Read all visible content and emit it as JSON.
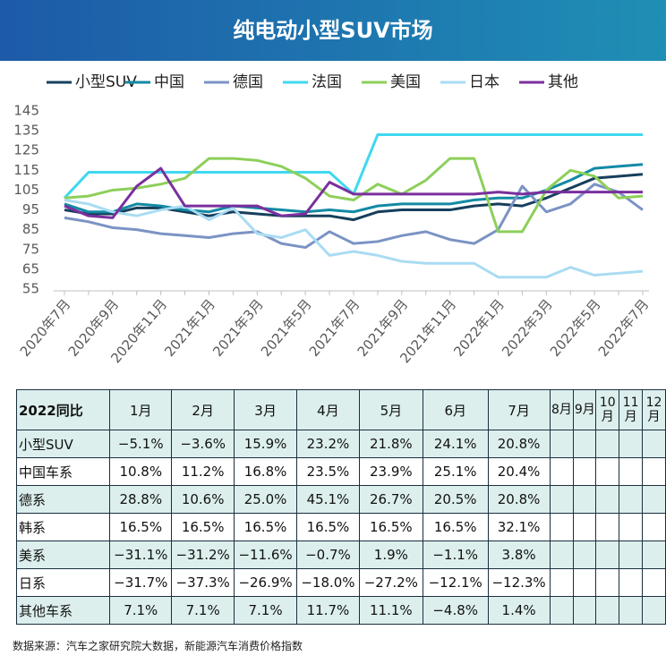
{
  "header": {
    "title": "纯电动小型SUV市场"
  },
  "chart_data": {
    "type": "line",
    "categories": [
      "2020年7月",
      null,
      "2020年9月",
      null,
      "2020年11月",
      null,
      "2021年1月",
      null,
      "2021年3月",
      null,
      "2021年5月",
      null,
      "2021年7月",
      null,
      "2021年9月",
      null,
      "2021年11月",
      null,
      "2022年1月",
      null,
      "2022年3月",
      null,
      "2022年5月",
      null,
      "2022年7月"
    ],
    "ylim": [
      55,
      145
    ],
    "yticks": [
      55,
      65,
      75,
      85,
      95,
      105,
      115,
      125,
      135,
      145
    ],
    "grid": false,
    "legend": "top",
    "series": [
      {
        "name": "小型SUV",
        "color": "#163f5c",
        "values": [
          95,
          93,
          93,
          96,
          96,
          94,
          92,
          94,
          93,
          92,
          92,
          92,
          90,
          94,
          95,
          95,
          95,
          97,
          98,
          97,
          101,
          106,
          111,
          112,
          113
        ]
      },
      {
        "name": "中国",
        "color": "#138aa5",
        "values": [
          98,
          94,
          94,
          98,
          97,
          95,
          94,
          97,
          96,
          95,
          94,
          95,
          94,
          97,
          98,
          98,
          98,
          100,
          101,
          101,
          105,
          110,
          116,
          117,
          118
        ]
      },
      {
        "name": "德国",
        "color": "#7b93c4",
        "values": [
          91,
          89,
          86,
          85,
          83,
          82,
          81,
          83,
          84,
          78,
          76,
          84,
          78,
          79,
          82,
          84,
          80,
          78,
          85,
          107,
          94,
          98,
          108,
          104,
          95
        ]
      },
      {
        "name": "法国",
        "color": "#3fd8f0",
        "values": [
          101,
          114,
          114,
          114,
          114,
          114,
          114,
          114,
          114,
          114,
          114,
          114,
          103,
          133,
          133,
          133,
          133,
          133,
          133,
          133,
          133,
          133,
          133,
          133,
          133
        ]
      },
      {
        "name": "美国",
        "color": "#8dcf5a",
        "values": [
          101,
          102,
          105,
          106,
          108,
          111,
          121,
          121,
          120,
          117,
          111,
          102,
          100,
          108,
          103,
          110,
          121,
          121,
          84,
          84,
          105,
          115,
          112,
          101,
          102
        ]
      },
      {
        "name": "日本",
        "color": "#a9dcf2",
        "values": [
          100,
          98,
          94,
          92,
          95,
          97,
          90,
          96,
          83,
          81,
          85,
          72,
          74,
          72,
          69,
          68,
          68,
          68,
          61,
          61,
          61,
          66,
          62,
          63,
          64
        ]
      },
      {
        "name": "其他",
        "color": "#7a2f9e",
        "values": [
          97,
          92,
          91,
          107,
          116,
          97,
          97,
          97,
          97,
          92,
          93,
          109,
          103,
          103,
          103,
          103,
          103,
          103,
          104,
          103,
          104,
          104,
          104,
          104,
          104
        ]
      }
    ]
  },
  "table": {
    "header": [
      "2022同比",
      "1月",
      "2月",
      "3月",
      "4月",
      "5月",
      "6月",
      "7月",
      "8月",
      "9月",
      "10月",
      "11月",
      "12月"
    ],
    "rows": [
      [
        "小型SUV",
        "−5.1%",
        "−3.6%",
        "15.9%",
        "23.2%",
        "21.8%",
        "24.1%",
        "20.8%"
      ],
      [
        "中国车系",
        "10.8%",
        "11.2%",
        "16.8%",
        "23.5%",
        "23.9%",
        "25.1%",
        "20.4%"
      ],
      [
        "德系",
        "28.8%",
        "10.6%",
        "25.0%",
        "45.1%",
        "26.7%",
        "20.5%",
        "20.8%"
      ],
      [
        "韩系",
        "16.5%",
        "16.5%",
        "16.5%",
        "16.5%",
        "16.5%",
        "16.5%",
        "32.1%"
      ],
      [
        "美系",
        "−31.1%",
        "−31.2%",
        "−11.6%",
        "−0.7%",
        "1.9%",
        "−1.1%",
        "3.8%"
      ],
      [
        "日系",
        "−31.7%",
        "−37.3%",
        "−26.9%",
        "−18.0%",
        "−27.2%",
        "−12.1%",
        "−12.3%"
      ],
      [
        "其他车系",
        "7.1%",
        "7.1%",
        "7.1%",
        "11.7%",
        "11.1%",
        "−4.8%",
        "1.4%"
      ]
    ]
  },
  "footer": {
    "source": "数据来源：汽车之家研究院大数据，新能源汽车消费价格指数"
  }
}
